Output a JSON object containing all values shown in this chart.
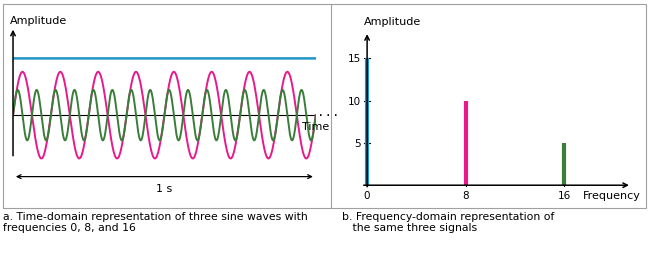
{
  "fig_width": 6.51,
  "fig_height": 2.55,
  "dpi": 100,
  "bg_color": "#ffffff",
  "time_domain": {
    "freq8": 8,
    "freq16": 16,
    "color0": "#2196c8",
    "color8": "#e8198b",
    "color16": "#3a7d3a",
    "dc_level": 0.72,
    "amp8": 0.55,
    "amp16": 0.32,
    "ylabel": "Amplitude",
    "xlabel": "Time",
    "dots": "...",
    "bracket_label": "1 s",
    "caption": "a. Time-domain representation of three sine waves with\nfrequencies 0, 8, and 16"
  },
  "freq_domain": {
    "freqs": [
      0,
      8,
      16
    ],
    "amplitudes": [
      15,
      10,
      5
    ],
    "colors": [
      "#2196c8",
      "#e8198b",
      "#3a7d3a"
    ],
    "xlabel": "Frequency",
    "ylabel": "Amplitude",
    "yticks": [
      5,
      10,
      15
    ],
    "xticks": [
      0,
      8,
      16
    ],
    "caption": "b. Frequency-domain representation of\n   the same three signals"
  },
  "border_color": "#a0a0a0",
  "divider_x": 0.508
}
